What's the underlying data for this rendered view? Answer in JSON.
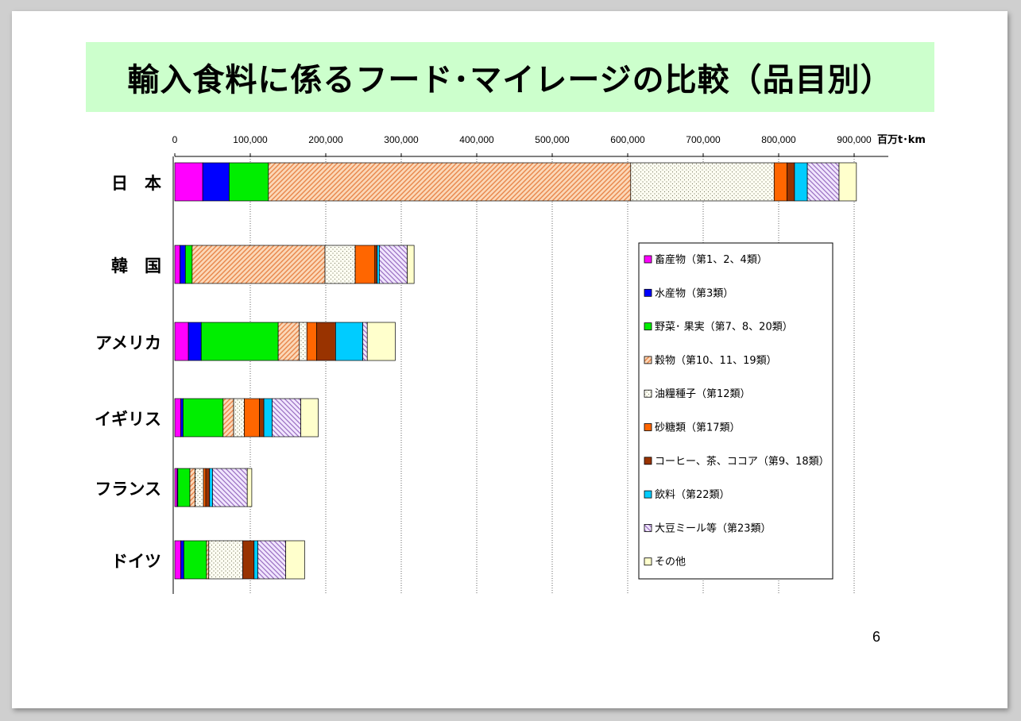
{
  "title": "輸入食料に係るフード･マイレージの比較（品目別）",
  "page_number": "6",
  "chart_data": {
    "type": "bar",
    "orientation": "horizontal",
    "stacked": true,
    "unit_label": "百万t･km",
    "xlim": [
      0,
      950000
    ],
    "ticks": [
      0,
      100000,
      200000,
      300000,
      400000,
      500000,
      600000,
      700000,
      800000,
      900000
    ],
    "tick_labels": [
      "0",
      "100,000",
      "200,000",
      "300,000",
      "400,000",
      "500,000",
      "600,000",
      "700,000",
      "800,000",
      "900,000"
    ],
    "grid": true,
    "legend_position": "right",
    "categories": [
      "日　本",
      "韓　国",
      "アメリカ",
      "イギリス",
      "フランス",
      "ドイツ"
    ],
    "series": [
      {
        "name": "畜産物（第1、2、4類）",
        "color": "#ff00ff",
        "pattern": "solid",
        "values": [
          37000,
          7000,
          18000,
          8000,
          3000,
          8000
        ]
      },
      {
        "name": "水産物（第3類）",
        "color": "#0000ff",
        "pattern": "solid",
        "values": [
          35000,
          7000,
          17000,
          3000,
          1000,
          4000
        ]
      },
      {
        "name": "野菜･ 果実（第7、8、20類）",
        "color": "#00ee00",
        "pattern": "solid",
        "values": [
          52000,
          9000,
          102000,
          53000,
          16000,
          30000
        ]
      },
      {
        "name": "穀物（第10、11、19類）",
        "color": "#f5a366",
        "pattern": "diag",
        "values": [
          480000,
          176000,
          28000,
          14000,
          7000,
          3000
        ]
      },
      {
        "name": "油糧種子（第12類）",
        "color": "#f5f5e0",
        "pattern": "dots",
        "values": [
          190000,
          40000,
          10000,
          14000,
          11000,
          45000
        ]
      },
      {
        "name": "砂糖類（第17類）",
        "color": "#ff6600",
        "pattern": "solid",
        "values": [
          17000,
          26000,
          13000,
          20000,
          3000,
          0
        ]
      },
      {
        "name": "コーヒー、茶、ココア（第9、18類）",
        "color": "#993300",
        "pattern": "solid",
        "values": [
          10000,
          3000,
          25000,
          6000,
          5000,
          15000
        ]
      },
      {
        "name": "飲料（第22類）",
        "color": "#00ccff",
        "pattern": "solid",
        "values": [
          17000,
          3000,
          36000,
          11000,
          4000,
          5000
        ]
      },
      {
        "name": "大豆ミール等（第23類）",
        "color": "#e6ccff",
        "pattern": "hatch",
        "values": [
          42000,
          37000,
          6000,
          38000,
          46000,
          37000
        ]
      },
      {
        "name": "その他",
        "color": "#ffffcc",
        "pattern": "solid",
        "values": [
          23000,
          9000,
          37000,
          23000,
          6000,
          25000
        ]
      }
    ]
  }
}
